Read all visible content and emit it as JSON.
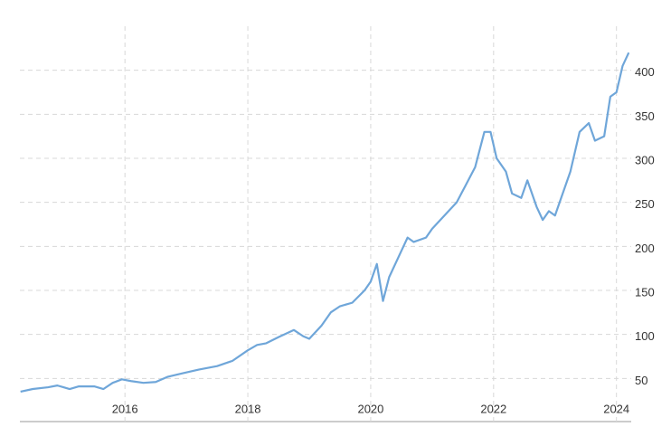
{
  "chart_data": {
    "type": "line",
    "x": [
      2014.3,
      2014.5,
      2014.75,
      2014.9,
      2015.0,
      2015.1,
      2015.25,
      2015.5,
      2015.65,
      2015.8,
      2015.95,
      2016.1,
      2016.3,
      2016.5,
      2016.7,
      2016.95,
      2017.2,
      2017.5,
      2017.75,
      2018.0,
      2018.15,
      2018.3,
      2018.5,
      2018.75,
      2018.9,
      2019.0,
      2019.2,
      2019.35,
      2019.5,
      2019.7,
      2019.9,
      2020.0,
      2020.1,
      2020.2,
      2020.3,
      2020.5,
      2020.6,
      2020.7,
      2020.9,
      2021.0,
      2021.2,
      2021.4,
      2021.55,
      2021.7,
      2021.85,
      2021.95,
      2022.05,
      2022.2,
      2022.3,
      2022.45,
      2022.55,
      2022.7,
      2022.8,
      2022.9,
      2023.0,
      2023.1,
      2023.25,
      2023.4,
      2023.55,
      2023.65,
      2023.8,
      2023.9,
      2024.0,
      2024.1,
      2024.2
    ],
    "series": [
      {
        "color": "#6fa6d9",
        "values": [
          35,
          38,
          40,
          42,
          40,
          38,
          41,
          41,
          38,
          45,
          49,
          47,
          45,
          46,
          52,
          56,
          60,
          64,
          70,
          82,
          88,
          90,
          97,
          105,
          98,
          95,
          110,
          125,
          132,
          136,
          150,
          160,
          180,
          138,
          165,
          195,
          210,
          205,
          210,
          220,
          235,
          250,
          270,
          290,
          330,
          330,
          300,
          285,
          260,
          255,
          275,
          245,
          230,
          240,
          235,
          255,
          285,
          330,
          340,
          320,
          325,
          370,
          375,
          405,
          420
        ]
      }
    ],
    "xlim": [
      2014.29,
      2024.24
    ],
    "xticks": [
      2016,
      2018,
      2020,
      2022,
      2024
    ],
    "ylim": [
      0,
      450
    ],
    "yticks": [
      50,
      100,
      150,
      200,
      250,
      300,
      350,
      400
    ],
    "grid": true
  }
}
